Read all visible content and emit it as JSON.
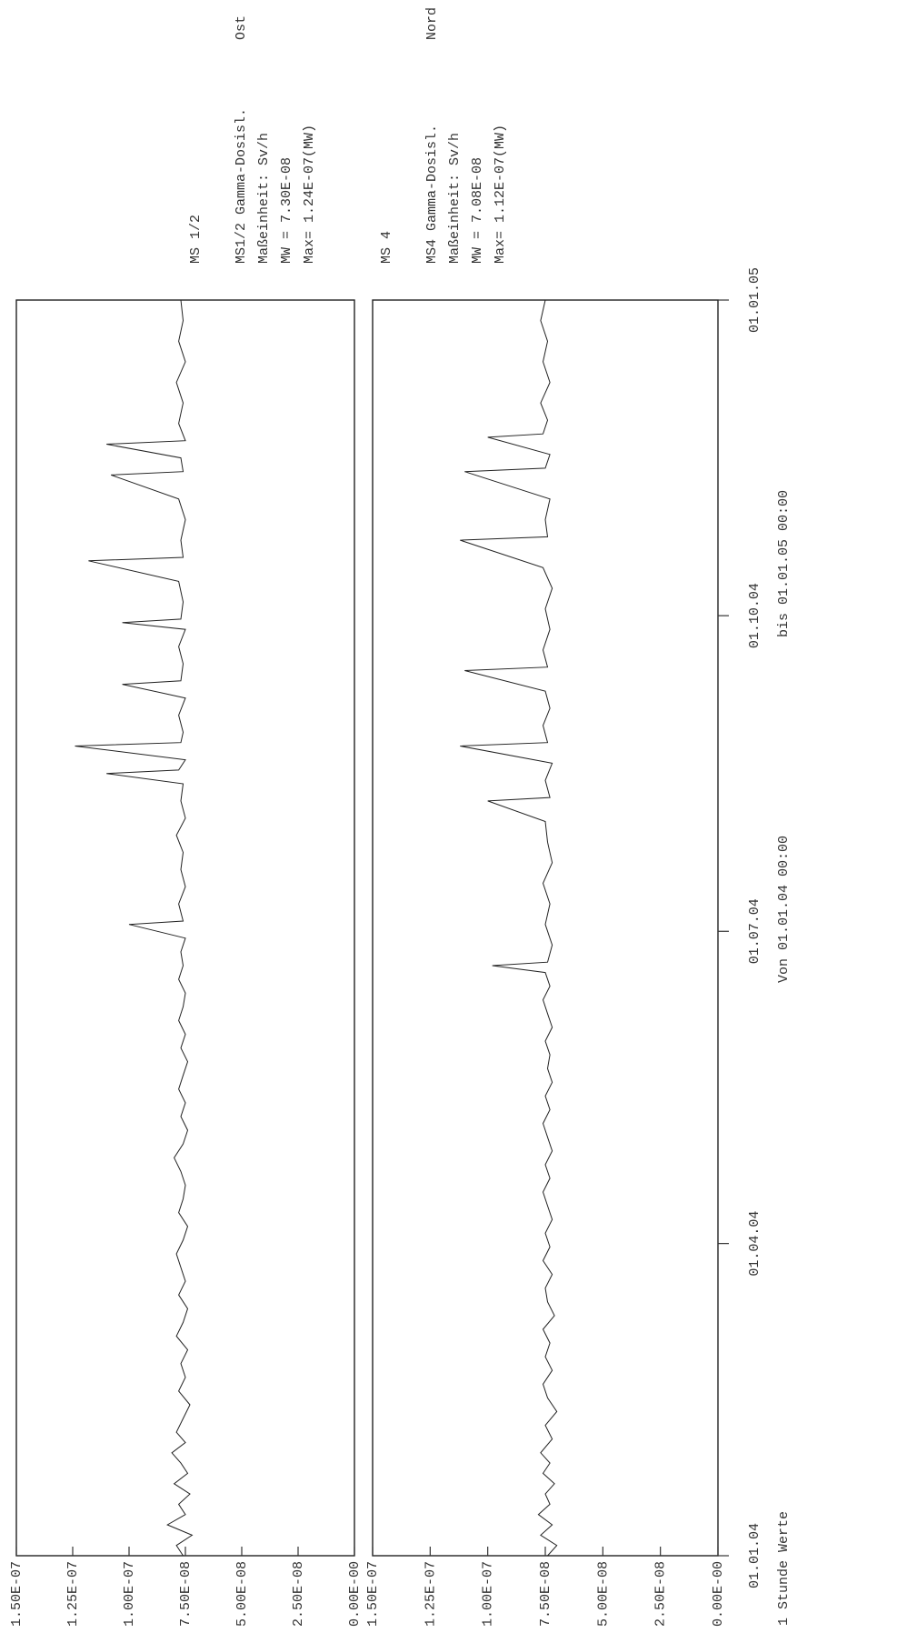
{
  "chart_data": [
    {
      "type": "line",
      "title": "MS 1/2",
      "subtitle": "MS1/2 Gamma-Dosisl.",
      "location": "Ost",
      "annotations": [
        "Maßeinheit:   Sv/h",
        "MW = 7.30E-08",
        "Max= 1.24E-07(MW)"
      ],
      "color": "#222222",
      "xlim": [
        0,
        366
      ],
      "ylim": [
        0,
        1.5e-07
      ],
      "yticks": [
        {
          "value": 0,
          "label": "0.00E-00"
        },
        {
          "value": 2.5e-08,
          "label": "2.50E-08"
        },
        {
          "value": 5e-08,
          "label": "5.00E-08"
        },
        {
          "value": 7.5e-08,
          "label": "7.50E-08"
        },
        {
          "value": 1e-07,
          "label": "1.00E-07"
        },
        {
          "value": 1.25e-07,
          "label": "1.25E-07"
        },
        {
          "value": 1.5e-07,
          "label": "1.50E-07"
        }
      ],
      "x": [
        0,
        3,
        6,
        9,
        12,
        15,
        18,
        21,
        24,
        27,
        30,
        33,
        36,
        40,
        44,
        48,
        52,
        56,
        60,
        64,
        68,
        72,
        76,
        80,
        84,
        88,
        92,
        96,
        100,
        104,
        108,
        112,
        116,
        120,
        124,
        128,
        132,
        136,
        140,
        144,
        148,
        152,
        156,
        160,
        164,
        168,
        172,
        176,
        180,
        184,
        185,
        190,
        195,
        200,
        205,
        210,
        215,
        220,
        225,
        228,
        229,
        232,
        236,
        237,
        240,
        245,
        250,
        254,
        255,
        260,
        265,
        270,
        272,
        273,
        278,
        284,
        290,
        291,
        296,
        302,
        308,
        315,
        316,
        320,
        324,
        325,
        330,
        336,
        342,
        348,
        354,
        360,
        366
      ],
      "values": [
        7.6e-08,
        7.9e-08,
        7.2e-08,
        8.3e-08,
        7.5e-08,
        7.8e-08,
        7.3e-08,
        8e-08,
        7.4e-08,
        7.7e-08,
        8.1e-08,
        7.5e-08,
        7.9e-08,
        7.6e-08,
        7.3e-08,
        7.8e-08,
        7.5e-08,
        7.7e-08,
        7.4e-08,
        7.9e-08,
        7.6e-08,
        7.4e-08,
        7.8e-08,
        7.5e-08,
        7.7e-08,
        7.9e-08,
        7.6e-08,
        7.4e-08,
        7.8e-08,
        7.6e-08,
        7.5e-08,
        7.7e-08,
        8e-08,
        7.6e-08,
        7.4e-08,
        7.7e-08,
        7.5e-08,
        7.8e-08,
        7.6e-08,
        7.4e-08,
        7.7e-08,
        7.5e-08,
        7.8e-08,
        7.6e-08,
        7.5e-08,
        7.8e-08,
        7.6e-08,
        7.7e-08,
        7.5e-08,
        1e-07,
        7.6e-08,
        7.8e-08,
        7.5e-08,
        7.7e-08,
        7.6e-08,
        7.9e-08,
        7.5e-08,
        7.7e-08,
        7.6e-08,
        1.1e-07,
        7.8e-08,
        7.5e-08,
        1.24e-07,
        7.7e-08,
        7.6e-08,
        7.8e-08,
        7.5e-08,
        1.03e-07,
        7.7e-08,
        7.6e-08,
        7.8e-08,
        7.5e-08,
        1.03e-07,
        7.7e-08,
        7.6e-08,
        7.8e-08,
        1.18e-07,
        7.6e-08,
        7.7e-08,
        7.5e-08,
        7.8e-08,
        1.08e-07,
        7.6e-08,
        7.7e-08,
        1.1e-07,
        7.5e-08,
        7.8e-08,
        7.6e-08,
        7.9e-08,
        7.5e-08,
        7.8e-08,
        7.6e-08,
        7.7e-08
      ]
    },
    {
      "type": "line",
      "title": "MS 4",
      "subtitle": "MS4 Gamma-Dosisl.",
      "location": "Nord",
      "annotations": [
        "Maßeinheit:   Sv/h",
        "MW = 7.08E-08",
        "Max= 1.12E-07(MW)"
      ],
      "color": "#222222",
      "xlim": [
        0,
        366
      ],
      "xticks": [
        {
          "value": 0,
          "label": "01.01.04"
        },
        {
          "value": 91,
          "label": "01.04.04"
        },
        {
          "value": 182,
          "label": "01.07.04"
        },
        {
          "value": 274,
          "label": "01.10.04"
        },
        {
          "value": 366,
          "label": "01.01.05"
        }
      ],
      "ylim": [
        0,
        1.5e-07
      ],
      "yticks": [
        {
          "value": 0,
          "label": "0.00E-00"
        },
        {
          "value": 2.5e-08,
          "label": "2.50E-08"
        },
        {
          "value": 5e-08,
          "label": "5.00E-08"
        },
        {
          "value": 7.5e-08,
          "label": "7.50E-08"
        },
        {
          "value": 1e-07,
          "label": "1.00E-07"
        },
        {
          "value": 1.25e-07,
          "label": "1.25E-07"
        },
        {
          "value": 1.5e-07,
          "label": "1.50E-07"
        }
      ],
      "x": [
        0,
        3,
        6,
        9,
        12,
        15,
        18,
        21,
        24,
        27,
        30,
        34,
        38,
        42,
        46,
        50,
        54,
        58,
        62,
        66,
        70,
        74,
        78,
        82,
        86,
        90,
        94,
        98,
        102,
        106,
        110,
        114,
        118,
        122,
        126,
        130,
        134,
        138,
        142,
        146,
        150,
        154,
        158,
        162,
        166,
        170,
        172,
        173,
        178,
        184,
        190,
        196,
        202,
        208,
        214,
        220,
        221,
        226,
        231,
        236,
        237,
        242,
        247,
        252,
        258,
        259,
        264,
        270,
        276,
        282,
        288,
        296,
        297,
        302,
        308,
        316,
        317,
        321,
        326,
        327,
        331,
        336,
        342,
        348,
        354,
        360,
        366
      ],
      "values": [
        7.4e-08,
        7e-08,
        7.7e-08,
        7.2e-08,
        7.8e-08,
        7.3e-08,
        7.5e-08,
        7.1e-08,
        7.6e-08,
        7.3e-08,
        7.7e-08,
        7.2e-08,
        7.5e-08,
        7e-08,
        7.4e-08,
        7.6e-08,
        7.2e-08,
        7.5e-08,
        7.3e-08,
        7.6e-08,
        7.1e-08,
        7.4e-08,
        7.5e-08,
        7.2e-08,
        7.6e-08,
        7.3e-08,
        7.5e-08,
        7.2e-08,
        7.4e-08,
        7.6e-08,
        7.3e-08,
        7.5e-08,
        7.2e-08,
        7.4e-08,
        7.6e-08,
        7.3e-08,
        7.5e-08,
        7.2e-08,
        7.4e-08,
        7.3e-08,
        7.5e-08,
        7.2e-08,
        7.4e-08,
        7.6e-08,
        7.3e-08,
        7.5e-08,
        9.8e-08,
        7.4e-08,
        7.2e-08,
        7.5e-08,
        7.3e-08,
        7.6e-08,
        7.2e-08,
        7.4e-08,
        7.5e-08,
        1e-07,
        7.3e-08,
        7.5e-08,
        7.2e-08,
        1.12e-07,
        7.4e-08,
        7.6e-08,
        7.3e-08,
        7.5e-08,
        1.1e-07,
        7.4e-08,
        7.6e-08,
        7.3e-08,
        7.5e-08,
        7.2e-08,
        7.6e-08,
        1.12e-07,
        7.4e-08,
        7.5e-08,
        7.3e-08,
        1.1e-07,
        7.5e-08,
        7.3e-08,
        1e-07,
        7.6e-08,
        7.4e-08,
        7.7e-08,
        7.3e-08,
        7.6e-08,
        7.4e-08,
        7.7e-08,
        7.5e-08
      ]
    }
  ],
  "footer": {
    "interval": "1 Stunde Werte",
    "from": "Von 01.01.04 00:00",
    "to": "bis 01.01.05 00:00"
  }
}
